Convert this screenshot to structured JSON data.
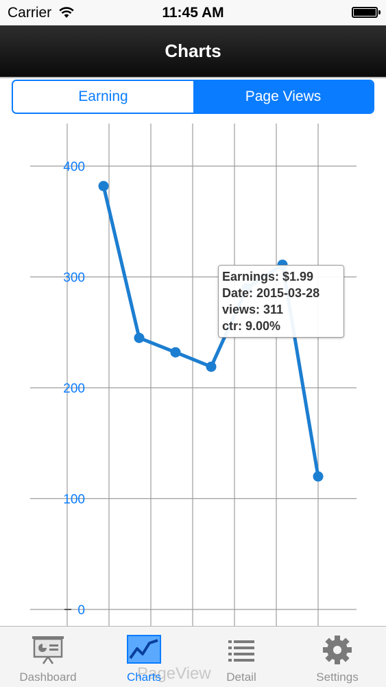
{
  "status_bar": {
    "carrier": "Carrier",
    "time": "11:45 AM"
  },
  "nav": {
    "title": "Charts"
  },
  "segments": {
    "items": [
      "Earning",
      "Page Views"
    ],
    "selected": "Page Views"
  },
  "chart_data": {
    "type": "line",
    "y_ticks": [
      "400",
      "300",
      "200",
      "100",
      "0"
    ],
    "ylim": [
      0,
      400
    ],
    "grid": true,
    "x_columns": 7,
    "series": [
      {
        "values": [
          382,
          245,
          232,
          219,
          290,
          311,
          120
        ],
        "color": "#1c7ed1"
      }
    ]
  },
  "tooltip": {
    "earnings": "Earnings: $1.99",
    "date": "Date: 2015-03-28",
    "views": "views: 311",
    "ctr": "ctr: 9.00%"
  },
  "tab_bar": {
    "ghost_label": "PageView",
    "items": [
      {
        "label": "Dashboard",
        "icon": "dashboard-icon",
        "active": false
      },
      {
        "label": "Charts",
        "icon": "charts-icon",
        "active": true
      },
      {
        "label": "Detail",
        "icon": "list-icon",
        "active": false
      },
      {
        "label": "Settings",
        "icon": "gear-icon",
        "active": false
      }
    ]
  },
  "colors": {
    "accent": "#0a7cff",
    "line": "#1c7ed1",
    "grid": "#9c9c9c"
  }
}
